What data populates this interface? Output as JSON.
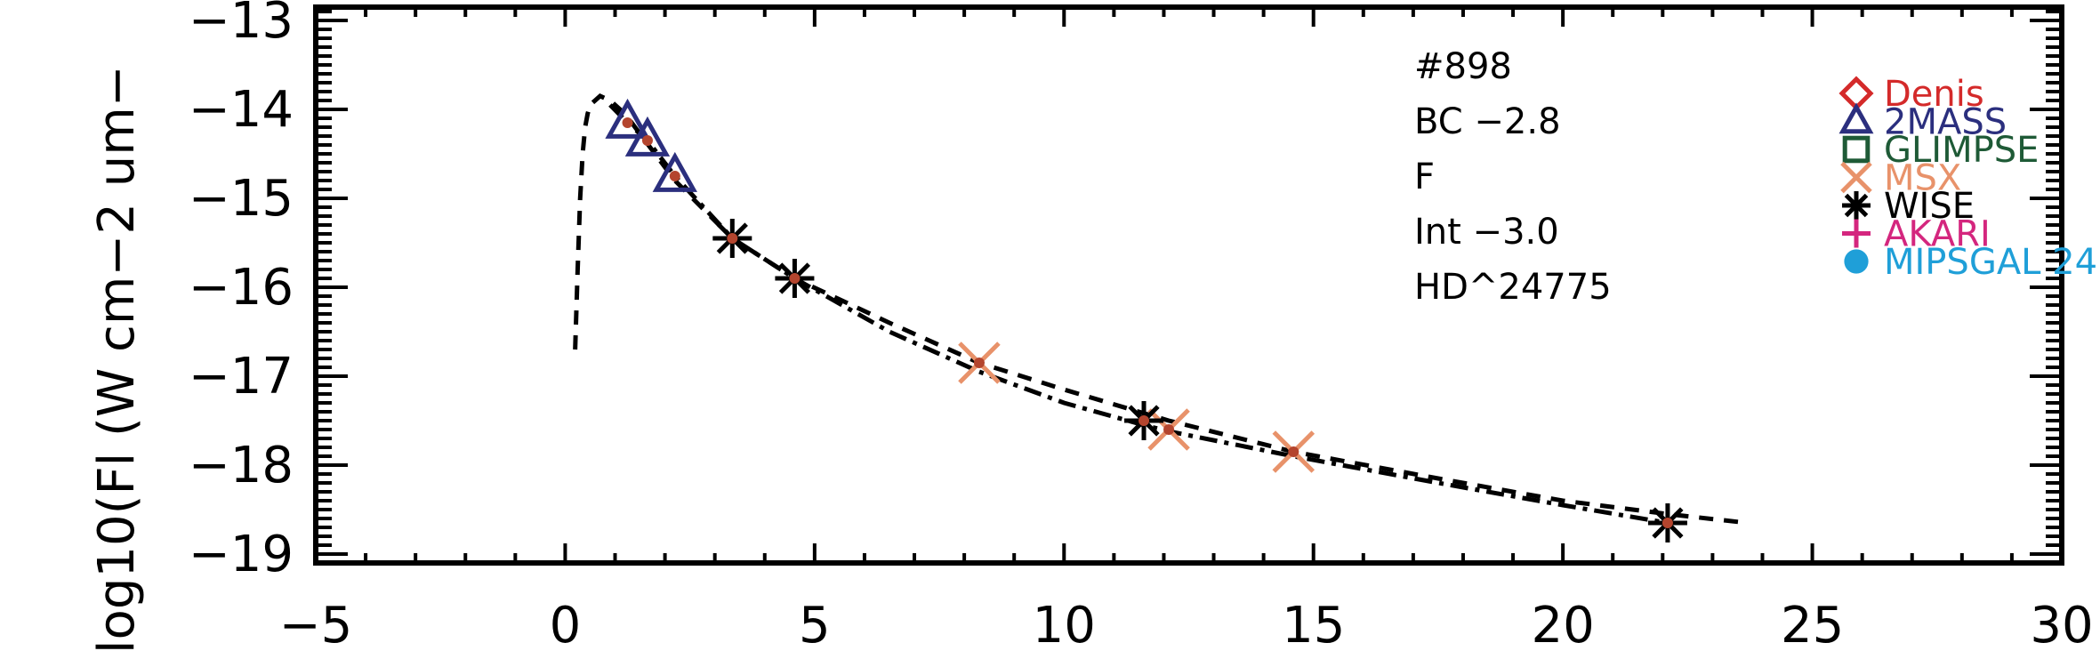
{
  "chart_data": {
    "type": "scatter",
    "title": "",
    "xlabel": "",
    "ylabel": "log10(Fl (W cm−2 um−",
    "xlim": [
      -5,
      30
    ],
    "ylim": [
      -19.1,
      -12.85
    ],
    "xticks": [
      -5,
      0,
      5,
      10,
      15,
      20,
      25,
      30
    ],
    "xtick_labels": [
      "−5",
      "0",
      "5",
      "10",
      "15",
      "20",
      "25",
      "30"
    ],
    "yticks": [
      -13,
      -14,
      -15,
      -16,
      -17,
      -18,
      -19
    ],
    "ytick_labels": [
      "−13",
      "−14",
      "−15",
      "−16",
      "−17",
      "−18",
      "−19"
    ],
    "grid": false,
    "legend_placement": "top-right",
    "annotations": [
      "#898",
      "BC −2.8",
      "F",
      "Int −3.0",
      "HD^24775"
    ],
    "series": [
      {
        "name": "Denis",
        "marker": "diamond",
        "color": "#d42a2a",
        "x": [],
        "y": []
      },
      {
        "name": "2MASS",
        "marker": "triangle",
        "color": "#2b2f7e",
        "x": [
          1.25,
          1.65,
          2.2
        ],
        "y": [
          -14.15,
          -14.35,
          -14.75
        ]
      },
      {
        "name": "GLIMPSE",
        "marker": "square",
        "color": "#1e5a36",
        "x": [],
        "y": []
      },
      {
        "name": "MSX",
        "marker": "x",
        "color": "#e8926a",
        "x": [
          8.3,
          12.1,
          14.6
        ],
        "y": [
          -16.85,
          -17.6,
          -17.85
        ]
      },
      {
        "name": "WISE",
        "marker": "asterisk",
        "color": "#000000",
        "x": [
          3.35,
          4.6,
          11.6,
          22.1
        ],
        "y": [
          -15.45,
          -15.9,
          -17.5,
          -18.65
        ]
      },
      {
        "name": "AKARI",
        "marker": "plus",
        "color": "#d4267e",
        "x": [],
        "y": []
      },
      {
        "name": "MIPSGAL 24",
        "marker": "circle",
        "color": "#1f9fd8",
        "x": [],
        "y": []
      }
    ],
    "model_points": {
      "color": "#b4452e",
      "x": [
        1.25,
        1.65,
        2.2,
        3.35,
        4.6,
        8.3,
        11.6,
        12.1,
        14.6,
        22.1
      ],
      "y": [
        -14.15,
        -14.35,
        -14.75,
        -15.45,
        -15.9,
        -16.85,
        -17.5,
        -17.6,
        -17.85,
        -18.65
      ]
    },
    "curves": [
      {
        "style": "dashed",
        "x": [
          0.2,
          0.25,
          0.3,
          0.35,
          0.4,
          0.45,
          0.5,
          0.6,
          0.7,
          0.9,
          1.2,
          1.6,
          2.2,
          3.35,
          4.6,
          6.5,
          8.3,
          10.0,
          12.1,
          14.6,
          17.5,
          20.0,
          22.1,
          23.7
        ],
        "y": [
          -16.7,
          -15.8,
          -15.0,
          -14.5,
          -14.2,
          -14.05,
          -13.95,
          -13.9,
          -13.85,
          -13.9,
          -14.05,
          -14.35,
          -14.8,
          -15.45,
          -15.9,
          -16.4,
          -16.85,
          -17.15,
          -17.5,
          -17.85,
          -18.15,
          -18.4,
          -18.55,
          -18.65
        ]
      },
      {
        "style": "dashdot",
        "x": [
          0.9,
          1.25,
          1.65,
          2.2,
          3.35,
          4.6,
          6.5,
          8.3,
          10.0,
          11.6,
          12.1,
          14.6,
          17.5,
          20.0,
          22.1
        ],
        "y": [
          -13.95,
          -14.15,
          -14.35,
          -14.75,
          -15.45,
          -15.9,
          -16.5,
          -16.95,
          -17.3,
          -17.55,
          -17.62,
          -17.9,
          -18.2,
          -18.45,
          -18.65
        ]
      }
    ]
  }
}
